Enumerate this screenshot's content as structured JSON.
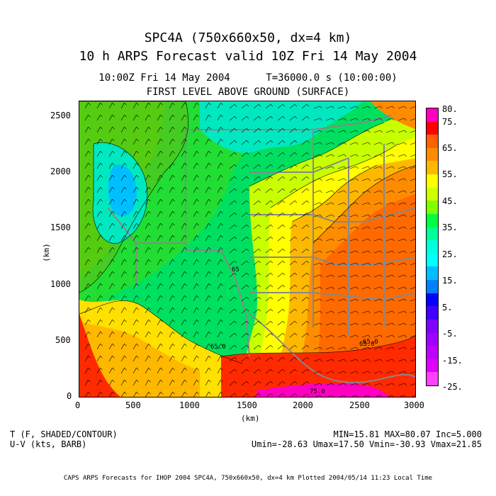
{
  "header": {
    "title_line1": "SPC4A (750x660x50, dx=4 km)",
    "title_line2": "10 h ARPS Forecast valid 10Z Fri 14 May 2004",
    "subtitle_line1": "10:00Z Fri 14 May 2004      T=36000.0 s (10:00:00)",
    "subtitle_line2": "FIRST LEVEL ABOVE GROUND (SURFACE)"
  },
  "axes": {
    "x_unit": "(km)",
    "y_unit": "(km)",
    "x_ticks": [
      "0",
      "500",
      "1000",
      "1500",
      "2000",
      "2500",
      "3000"
    ],
    "y_ticks": [
      "0",
      "500",
      "1000",
      "1500",
      "2000",
      "2500"
    ]
  },
  "colorbar": {
    "labels": [
      "80.",
      "75.",
      "65.",
      "55.",
      "45.",
      "35.",
      "25.",
      "15.",
      "5.",
      "-5.",
      "-15.",
      "-25."
    ],
    "colors": [
      "#ff00c0",
      "#ff0000",
      "#ff6000",
      "#ff8c00",
      "#ffb800",
      "#ffff00",
      "#d0ff00",
      "#80ff00",
      "#00ff40",
      "#00ff99",
      "#00ffdd",
      "#00ffff",
      "#00bfff",
      "#0080ff",
      "#0000ff",
      "#4000ff",
      "#8000ff",
      "#a000ff",
      "#c000ff",
      "#e000ff",
      "#ff40ff"
    ]
  },
  "contour_labels": [
    "65.0",
    "65.0",
    "65.0",
    "75.0",
    "65"
  ],
  "footer": {
    "field1": "T (F, SHADED/CONTOUR)",
    "field2": "U-V (kts, BARB)",
    "stats1": "MIN=15.81 MAX=80.07 Inc=5.000",
    "stats2": "Umin=-28.63 Umax=17.50 Vmin=-30.93 Vmax=21.85",
    "credits": "CAPS ARPS Forecasts for IHOP 2004  SPC4A, 750x660x50, dx=4 km  Plotted 2004/05/14 11:23 Local Time"
  }
}
